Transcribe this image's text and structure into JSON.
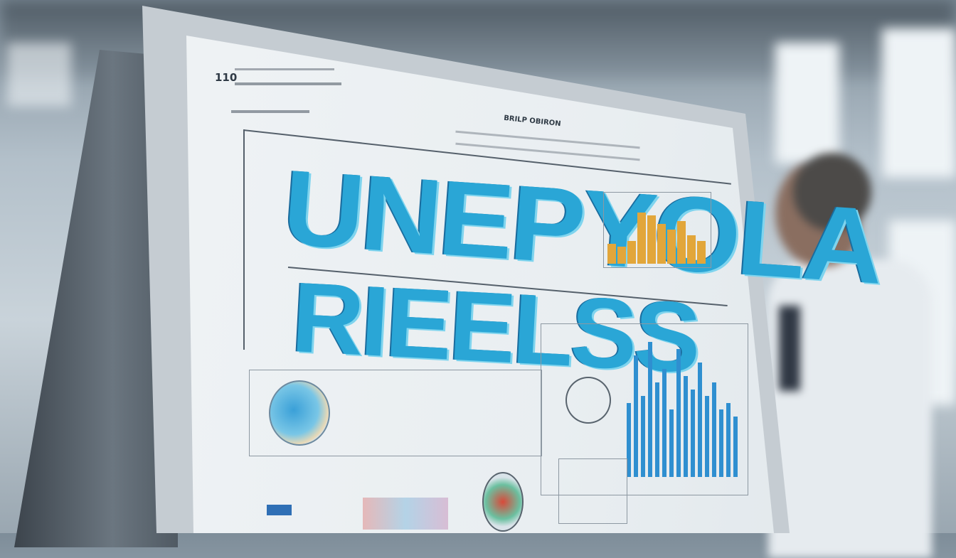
{
  "poster": {
    "header_number": "110",
    "headline_top": "UNEPYOLA",
    "headline_bottom": "RIEELSS",
    "subheading": "BRILP OBIRON"
  },
  "colors": {
    "accent": "#2aa6d6",
    "orange": "#e2a63a",
    "blue_bars": "#2f8fd0"
  },
  "right_bar_chart": [
    0.55,
    0.9,
    0.6,
    1.0,
    0.7,
    0.8,
    0.5,
    0.95,
    0.75,
    0.65,
    0.85,
    0.6,
    0.7,
    0.5,
    0.55,
    0.45
  ],
  "orange_chart": [
    0.35,
    0.3,
    0.4,
    0.9,
    0.85,
    0.7,
    0.6,
    0.75,
    0.5,
    0.4
  ]
}
